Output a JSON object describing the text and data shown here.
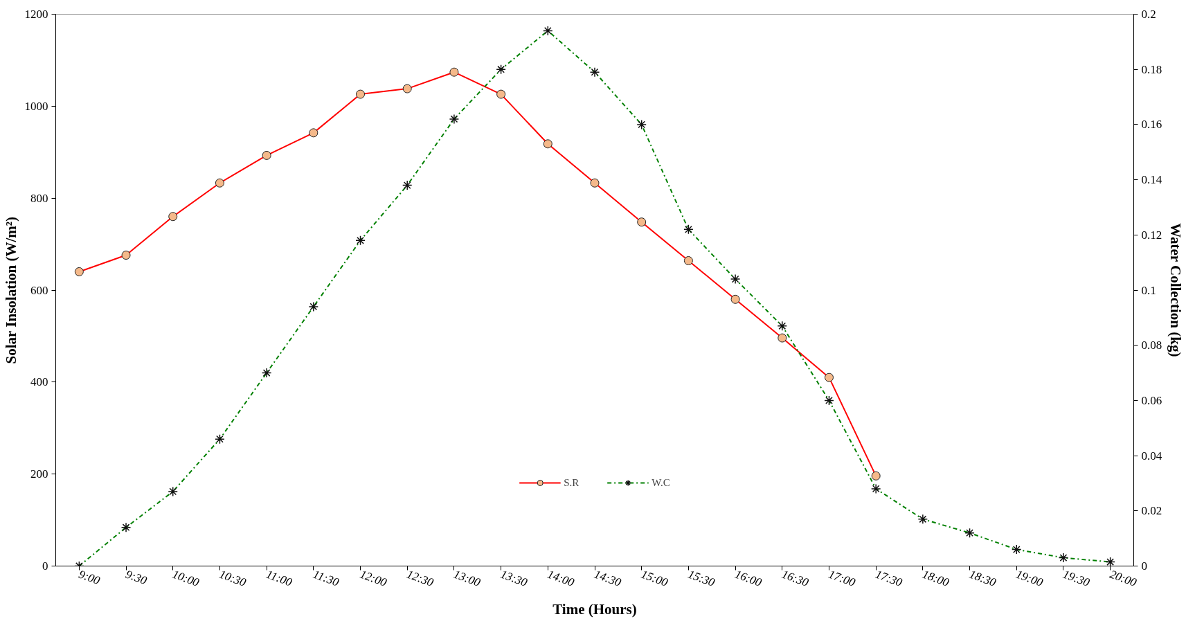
{
  "chart_data": {
    "type": "line",
    "xlabel": "Time (Hours)",
    "ylabel": "Solar Insolation (W/m²)",
    "y2label": "Water Collection (kg)",
    "categories": [
      "9:00",
      "9:30",
      "10:00",
      "10:30",
      "11:00",
      "11:30",
      "12:00",
      "12:30",
      "13:00",
      "13:30",
      "14:00",
      "14:30",
      "15:00",
      "15:30",
      "16:00",
      "16:30",
      "17:00",
      "17:30",
      "18:00",
      "18:30",
      "19:00",
      "19:30",
      "20:00"
    ],
    "series": [
      {
        "name": "S.R",
        "color": "#ff0000",
        "marker": "circle",
        "line_style": "solid",
        "values": [
          640,
          676,
          760,
          833,
          893,
          942,
          1026,
          1038,
          1074,
          1026,
          918,
          833,
          748,
          664,
          580,
          496,
          410,
          196,
          null,
          null,
          null,
          null,
          null
        ]
      },
      {
        "name": "W.C",
        "color": "#008000",
        "marker": "cross",
        "line_style": "dashdot",
        "axis": "y2",
        "values": [
          0,
          0.014,
          0.027,
          0.046,
          0.07,
          0.094,
          0.118,
          0.138,
          0.162,
          0.18,
          0.194,
          0.179,
          0.16,
          0.122,
          0.104,
          0.087,
          0.06,
          0.028,
          0.017,
          0.012,
          0.006,
          0.003,
          0.0015
        ]
      }
    ],
    "ylim": [
      0,
      1200
    ],
    "yticks": [
      0,
      200,
      400,
      600,
      800,
      1000,
      1200
    ],
    "y2lim": [
      0,
      0.2
    ],
    "y2ticks": [
      0,
      {
        "value": 0.02,
        "label": "0.02"
      },
      {
        "value": 0.04,
        "label": "0.04"
      },
      {
        "value": 0.06,
        "label": "0.06"
      },
      {
        "value": 0.08,
        "label": "0.08"
      },
      {
        "value": 0.1,
        "label": "0.1"
      },
      {
        "value": 0.12,
        "label": "0.12"
      },
      {
        "value": 0.14,
        "label": "0.14"
      },
      {
        "value": 0.16,
        "label": "0.16"
      },
      {
        "value": 0.18,
        "label": "0.18"
      },
      {
        "value": 0.2,
        "label": "0.2"
      }
    ],
    "grid": false,
    "legend": "bottom"
  }
}
